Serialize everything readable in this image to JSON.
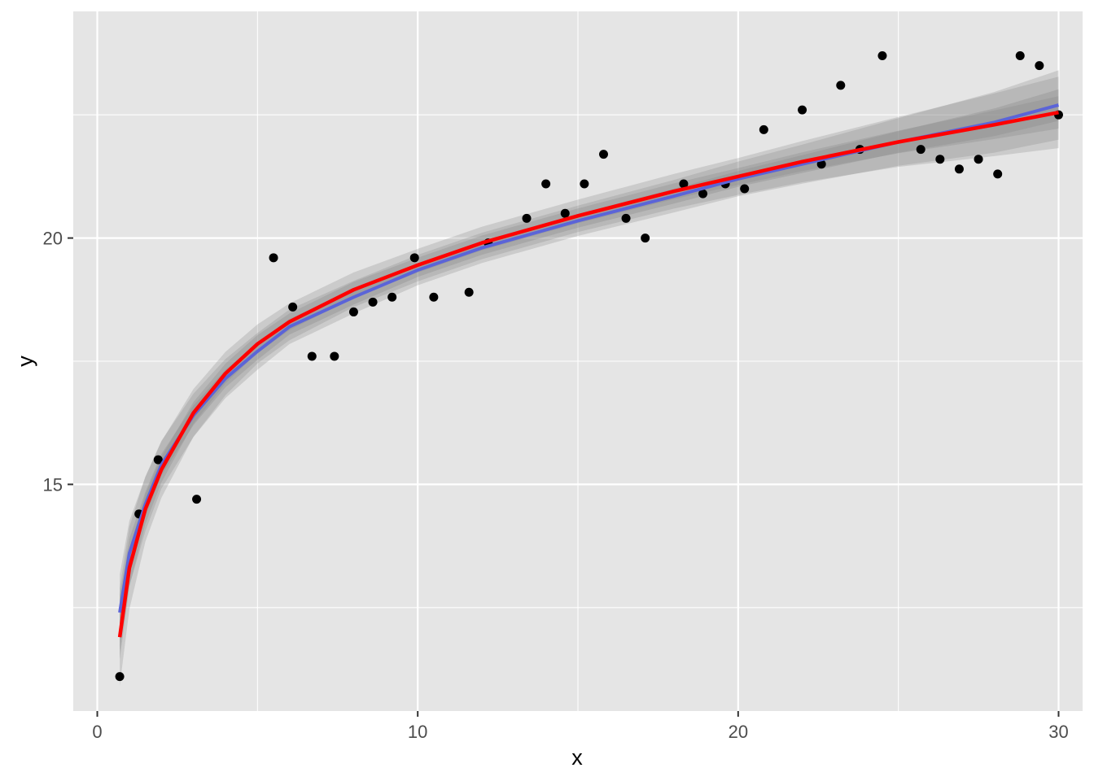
{
  "chart_data": {
    "type": "scatter",
    "title": "",
    "xlabel": "x",
    "ylabel": "y",
    "xlim": [
      -0.75,
      30.75
    ],
    "ylim": [
      10.4,
      24.6
    ],
    "x_ticks": [
      0,
      10,
      20,
      30
    ],
    "x_tick_labels": [
      "0",
      "10",
      "20",
      "30"
    ],
    "y_ticks": [
      15,
      20
    ],
    "y_tick_labels": [
      "15",
      "20"
    ],
    "x_minor_gridlines": [
      5,
      15,
      25
    ],
    "y_minor_gridlines": [
      12.5,
      17.5,
      22.5
    ],
    "grid": true,
    "legend": "none",
    "background": "#e5e5e5",
    "gridline_color": "#ffffff",
    "points": {
      "color": "#000000",
      "x": [
        0.7,
        1.3,
        1.9,
        3.1,
        5.5,
        6.1,
        6.7,
        7.4,
        8.0,
        8.6,
        9.2,
        9.9,
        10.5,
        11.6,
        12.2,
        13.4,
        14.0,
        14.6,
        15.2,
        15.8,
        16.5,
        17.1,
        18.3,
        18.9,
        19.6,
        20.2,
        20.8,
        22.0,
        22.6,
        23.2,
        23.8,
        24.5,
        25.7,
        26.3,
        26.9,
        27.5,
        28.1,
        28.8,
        29.4,
        30.0
      ],
      "y": [
        11.1,
        14.4,
        15.5,
        14.7,
        19.6,
        18.6,
        17.6,
        17.6,
        18.5,
        18.7,
        18.8,
        19.6,
        18.8,
        18.9,
        19.9,
        20.4,
        21.1,
        20.5,
        21.1,
        21.7,
        20.4,
        20.0,
        21.1,
        20.9,
        21.1,
        21.0,
        22.2,
        22.6,
        21.5,
        23.1,
        21.8,
        23.7,
        21.8,
        21.6,
        21.4,
        21.6,
        21.3,
        23.7,
        23.5,
        22.5
      ]
    },
    "series": [
      {
        "color": "#5b64d8",
        "x": [
          0.7,
          1.0,
          1.5,
          2.0,
          3.0,
          4.0,
          5.0,
          6.0,
          8.0,
          10.0,
          12.0,
          15.0,
          18.0,
          20.0,
          22.0,
          25.0,
          28.0,
          30.0
        ],
        "y": [
          12.4,
          13.6,
          14.6,
          15.4,
          16.4,
          17.15,
          17.7,
          18.2,
          18.8,
          19.35,
          19.8,
          20.35,
          20.85,
          21.2,
          21.5,
          21.95,
          22.35,
          22.7
        ],
        "band": [
          0.35,
          0.3,
          0.25,
          0.22,
          0.2,
          0.18,
          0.17,
          0.16,
          0.15,
          0.14,
          0.14,
          0.14,
          0.15,
          0.16,
          0.18,
          0.22,
          0.28,
          0.32
        ]
      },
      {
        "color": "#ff0000",
        "x": [
          0.7,
          1.0,
          1.5,
          2.0,
          3.0,
          4.0,
          5.0,
          6.0,
          8.0,
          10.0,
          12.0,
          15.0,
          18.0,
          20.0,
          22.0,
          25.0,
          28.0,
          30.0
        ],
        "y": [
          11.9,
          13.3,
          14.5,
          15.3,
          16.45,
          17.25,
          17.85,
          18.3,
          18.95,
          19.45,
          19.9,
          20.45,
          20.95,
          21.25,
          21.55,
          21.95,
          22.3,
          22.55
        ],
        "band": [
          0.45,
          0.38,
          0.3,
          0.26,
          0.22,
          0.2,
          0.18,
          0.17,
          0.16,
          0.15,
          0.15,
          0.15,
          0.16,
          0.17,
          0.19,
          0.23,
          0.29,
          0.33
        ]
      }
    ]
  }
}
